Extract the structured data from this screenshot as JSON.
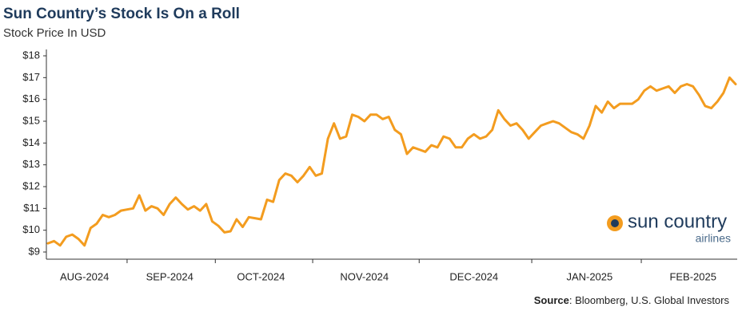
{
  "chart_data": {
    "type": "line",
    "title": "Sun Country’s Stock Is On a Roll",
    "subtitle": "Stock Price In USD",
    "logo": {
      "name": "sun country",
      "tagline": "airlines"
    },
    "source": {
      "label": "Source",
      "text": ": Bloomberg, U.S. Global Investors"
    },
    "categories": [
      null,
      null,
      null,
      null,
      null,
      null,
      "AUG-2024",
      null,
      null,
      null,
      null,
      null,
      null,
      null,
      null,
      null,
      null,
      null,
      null,
      null,
      "SEP-2024",
      null,
      null,
      null,
      null,
      null,
      null,
      null,
      null,
      null,
      null,
      null,
      null,
      null,
      null,
      "OCT-2024",
      null,
      null,
      null,
      null,
      null,
      null,
      null,
      null,
      null,
      null,
      null,
      null,
      null,
      null,
      null,
      null,
      "NOV-2024",
      null,
      null,
      null,
      null,
      null,
      null,
      null,
      null,
      null,
      null,
      null,
      null,
      null,
      null,
      null,
      null,
      null,
      "DEC-2024",
      null,
      null,
      null,
      null,
      null,
      null,
      null,
      null,
      null,
      null,
      null,
      null,
      null,
      null,
      null,
      null,
      null,
      null,
      "JAN-2025",
      null,
      null,
      null,
      null,
      null,
      null,
      null,
      null,
      null,
      null,
      null,
      null,
      null,
      null,
      null,
      null,
      "FEB-2025",
      null,
      null,
      null,
      null,
      null,
      null,
      null
    ],
    "series": [
      {
        "name": "Sun Country",
        "color": "#f39c1f",
        "values": [
          9.4,
          9.5,
          9.3,
          9.7,
          9.8,
          9.6,
          9.3,
          10.1,
          10.3,
          10.7,
          10.6,
          10.7,
          10.9,
          10.95,
          11.0,
          11.6,
          10.9,
          11.1,
          11.0,
          10.7,
          11.2,
          11.5,
          11.2,
          10.95,
          11.1,
          10.9,
          11.2,
          10.4,
          10.2,
          9.9,
          9.95,
          10.5,
          10.15,
          10.6,
          10.55,
          10.5,
          11.4,
          11.3,
          12.3,
          12.6,
          12.5,
          12.2,
          12.5,
          12.9,
          12.5,
          12.6,
          14.2,
          14.9,
          14.2,
          14.3,
          15.3,
          15.2,
          15.0,
          15.3,
          15.3,
          15.1,
          15.2,
          14.6,
          14.4,
          13.5,
          13.8,
          13.7,
          13.6,
          13.9,
          13.8,
          14.3,
          14.2,
          13.8,
          13.8,
          14.2,
          14.4,
          14.2,
          14.3,
          14.6,
          15.5,
          15.1,
          14.8,
          14.9,
          14.6,
          14.2,
          14.5,
          14.8,
          14.9,
          15.0,
          14.9,
          14.7,
          14.5,
          14.4,
          14.2,
          14.8,
          15.7,
          15.4,
          15.9,
          15.6,
          15.8,
          15.8,
          15.8,
          16.0,
          16.4,
          16.6,
          16.4,
          16.5,
          16.6,
          16.3,
          16.6,
          16.7,
          16.6,
          16.2,
          15.7,
          15.6,
          15.9,
          16.3,
          17.0,
          16.7
        ]
      }
    ],
    "ylim": [
      9,
      18
    ],
    "yticks": [
      {
        "value": 9,
        "label": "$9"
      },
      {
        "value": 10,
        "label": "$10"
      },
      {
        "value": 11,
        "label": "$11"
      },
      {
        "value": 12,
        "label": "$12"
      },
      {
        "value": 13,
        "label": "$13"
      },
      {
        "value": 14,
        "label": "$14"
      },
      {
        "value": 15,
        "label": "$15"
      },
      {
        "value": 16,
        "label": "$16"
      },
      {
        "value": 17,
        "label": "$17"
      },
      {
        "value": 18,
        "label": "$18"
      }
    ],
    "grid": false
  }
}
